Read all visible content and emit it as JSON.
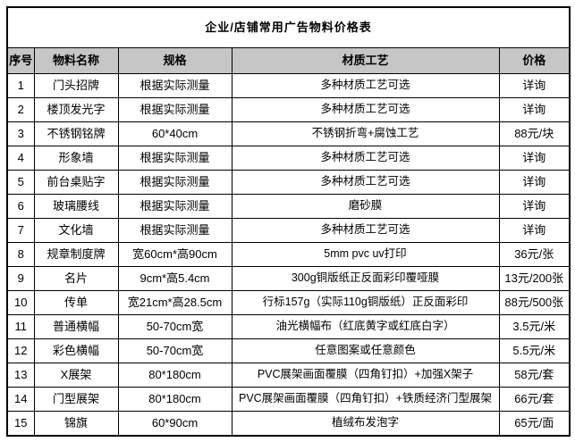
{
  "title": "企业/店铺常用广告物料价格表",
  "colors": {
    "header_bg": "#c6c6c6",
    "border": "#000000",
    "background": "#ffffff"
  },
  "table": {
    "columns": [
      "序号",
      "物料名称",
      "规格",
      "材质工艺",
      "价格"
    ],
    "column_keys": [
      "cell-index",
      "cell-material-name",
      "cell-spec",
      "cell-process",
      "cell-price"
    ],
    "rows": [
      [
        "1",
        "门头招牌",
        "根据实际测量",
        "多种材质工艺可选",
        "详询"
      ],
      [
        "2",
        "楼顶发光字",
        "根据实际测量",
        "多种材质工艺可选",
        "详询"
      ],
      [
        "3",
        "不锈钢铭牌",
        "60*40cm",
        "不锈钢折弯+腐蚀工艺",
        "88元/块"
      ],
      [
        "4",
        "形象墙",
        "根据实际测量",
        "多种材质工艺可选",
        "详询"
      ],
      [
        "5",
        "前台桌贴字",
        "根据实际测量",
        "多种材质工艺可选",
        "详询"
      ],
      [
        "6",
        "玻璃腰线",
        "根据实际测量",
        "磨砂膜",
        "详询"
      ],
      [
        "7",
        "文化墙",
        "根据实际测量",
        "多种材质工艺可选",
        "详询"
      ],
      [
        "8",
        "规章制度牌",
        "宽60cm*高90cm",
        "5mm pvc uv打印",
        "36元/张"
      ],
      [
        "9",
        "名片",
        "9cm*高5.4cm",
        "300g铜版纸正反面彩印覆哑膜",
        "13元/200张"
      ],
      [
        "10",
        "传单",
        "宽21cm*高28.5cm",
        "行标157g（实际110g铜版纸）正反面彩印",
        "88元/500张"
      ],
      [
        "11",
        "普通横幅",
        "50-70cm宽",
        "油光横幅布（红底黄字或红底白字）",
        "3.5元/米"
      ],
      [
        "12",
        "彩色横幅",
        "50-70cm宽",
        "任意图案或任意颜色",
        "5.5元/米"
      ],
      [
        "13",
        "X展架",
        "80*180cm",
        "PVC展架画面覆膜（四角钉扣）+加强X架子",
        "58元/套"
      ],
      [
        "14",
        "门型展架",
        "80*180cm",
        "PVC展架画面覆膜（四角钉扣）+铁质经济门型展架",
        "66元/套"
      ],
      [
        "15",
        "锦旗",
        "60*90cm",
        "植绒布发泡字",
        "65元/面"
      ]
    ]
  }
}
